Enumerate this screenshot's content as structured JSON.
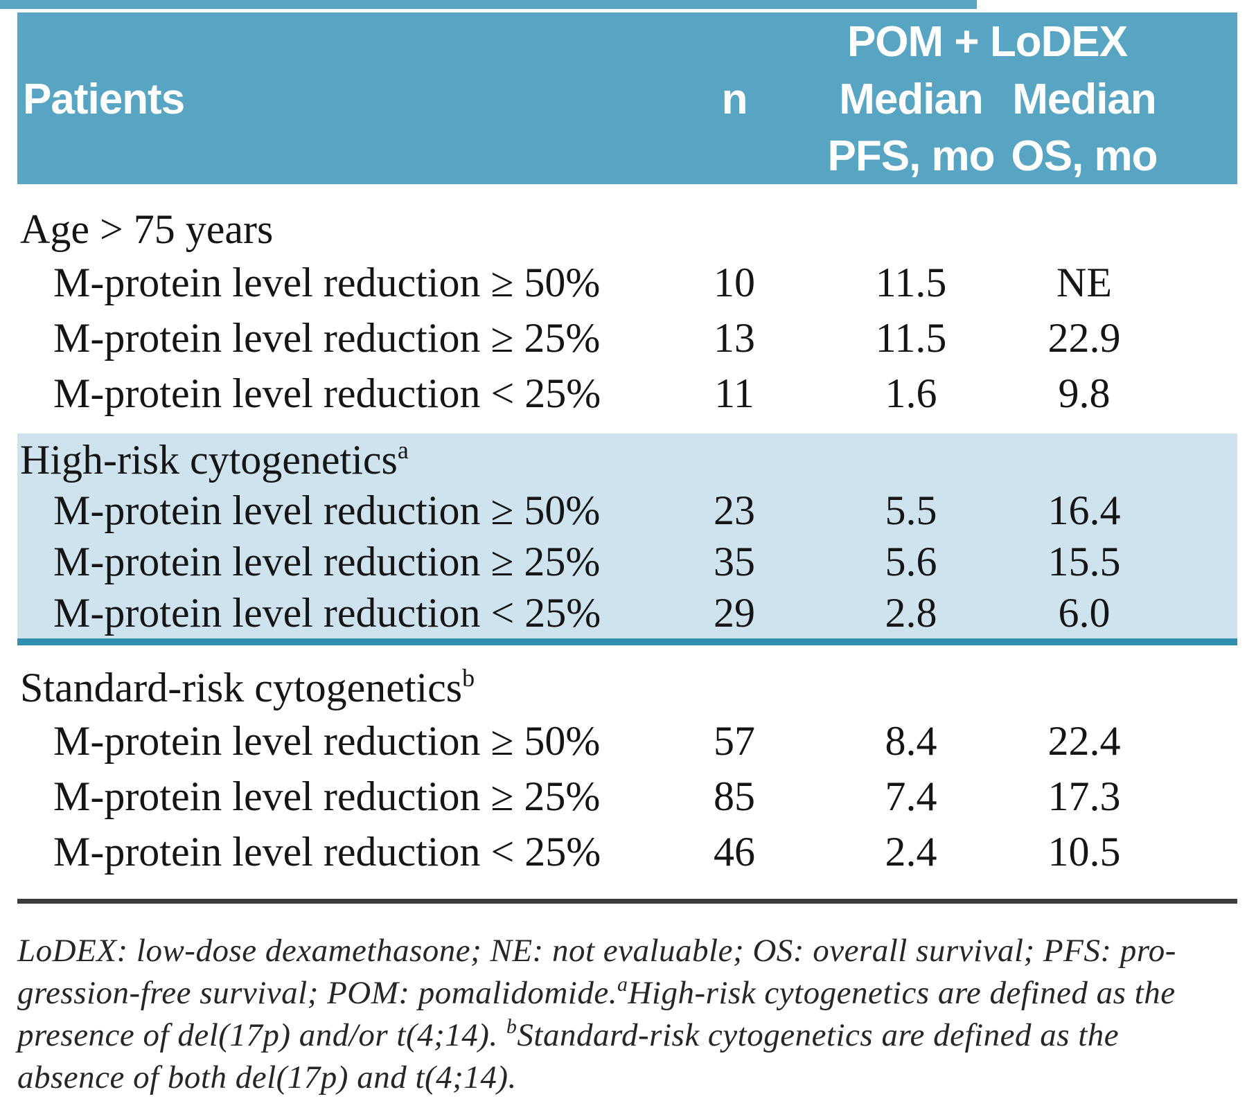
{
  "colors": {
    "header_bg": "#58a5c3",
    "band_bg": "#cfe3ee",
    "teal_divider": "#2f8fae",
    "dark_rule": "#3c3c3c",
    "header_text": "#ffffff",
    "body_text": "#151515"
  },
  "header": {
    "group": "POM + LoDEX",
    "patients": "Patients",
    "n": "n",
    "pfs_line1": "Median",
    "pfs_line2": "PFS, mo",
    "os_line1": "Median",
    "os_line2": "OS, mo"
  },
  "sections": [
    {
      "label": "Age > 75 years",
      "sup": "",
      "highlighted": false,
      "rows": [
        {
          "label": "M-protein level reduction ≥ 50%",
          "n": "10",
          "pfs": "11.5",
          "os": "NE"
        },
        {
          "label": "M-protein level reduction ≥ 25%",
          "n": "13",
          "pfs": "11.5",
          "os": "22.9"
        },
        {
          "label": "M-protein level reduction < 25%",
          "n": "11",
          "pfs": "1.6",
          "os": "9.8"
        }
      ]
    },
    {
      "label": "High-risk cytogenetics",
      "sup": "a",
      "highlighted": true,
      "rows": [
        {
          "label": "M-protein level reduction ≥ 50%",
          "n": "23",
          "pfs": "5.5",
          "os": "16.4"
        },
        {
          "label": "M-protein level reduction ≥ 25%",
          "n": "35",
          "pfs": "5.6",
          "os": "15.5"
        },
        {
          "label": "M-protein level reduction < 25%",
          "n": "29",
          "pfs": "2.8",
          "os": "6.0"
        }
      ]
    },
    {
      "label": "Standard-risk cytogenetics",
      "sup": "b",
      "highlighted": false,
      "rows": [
        {
          "label": "M-protein level reduction ≥ 50%",
          "n": "57",
          "pfs": "8.4",
          "os": "22.4"
        },
        {
          "label": "M-protein level reduction ≥ 25%",
          "n": "85",
          "pfs": "7.4",
          "os": "17.3"
        },
        {
          "label": "M-protein level reduction < 25%",
          "n": "46",
          "pfs": "2.4",
          "os": "10.5"
        }
      ]
    }
  ],
  "footnote": {
    "lines": [
      {
        "pre": "LoDEX: low-dose dexamethasone; NE: not evaluable; OS: overall survival; PFS: pro-",
        "sup": "",
        "post": ""
      },
      {
        "pre": "gression-free survival; POM: pomalidomide.",
        "sup": "a",
        "post": "High-risk cytogenetics are defined as the"
      },
      {
        "pre": "presence of del(17p) and/or t(4;14). ",
        "sup": "b",
        "post": "Standard-risk cytogenetics are defined as the"
      },
      {
        "pre": "absence of both del(17p) and t(4;14).",
        "sup": "",
        "post": ""
      }
    ]
  }
}
